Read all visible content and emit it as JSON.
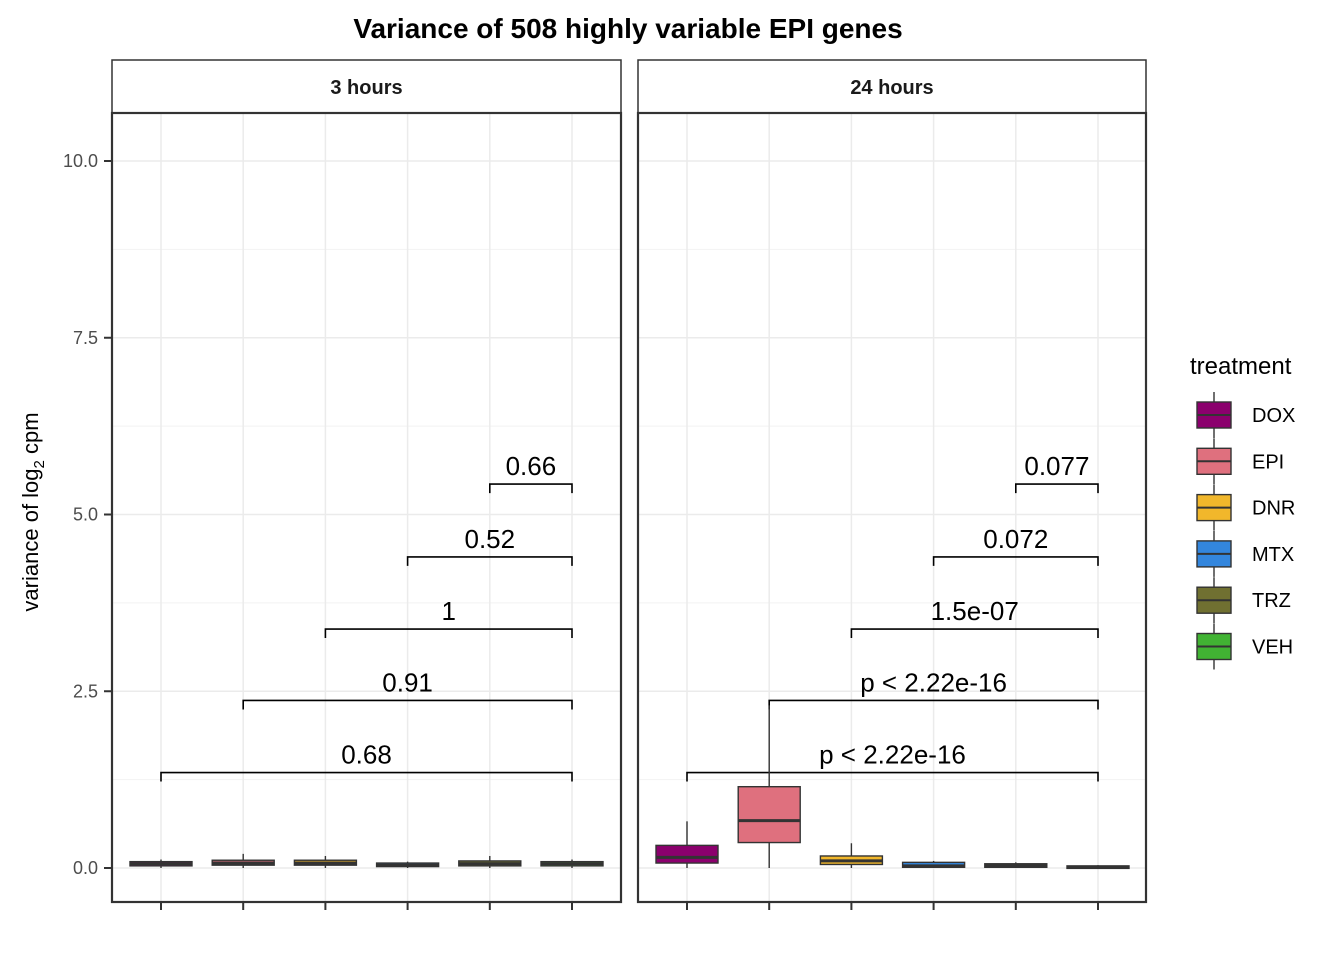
{
  "chart_data": {
    "type": "box",
    "title": "Variance of 508 highly variable EPI genes",
    "ylabel": {
      "prefix": "variance of log",
      "subscript": "2",
      "suffix": " cpm"
    },
    "ylim": [
      -0.45,
      10.7
    ],
    "yticks": [
      0,
      2.5,
      5,
      7.5,
      10
    ],
    "ytick_labels": [
      "0.0",
      "2.5",
      "5.0",
      "7.5",
      "10.0"
    ],
    "grid": true,
    "legend": {
      "title": "treatment",
      "position": "right",
      "items": [
        {
          "label": "DOX",
          "color": "#8B006D"
        },
        {
          "label": "EPI",
          "color": "#DF707E"
        },
        {
          "label": "DNR",
          "color": "#F1B72B"
        },
        {
          "label": "MTX",
          "color": "#3386DD"
        },
        {
          "label": "TRZ",
          "color": "#707031"
        },
        {
          "label": "VEH",
          "color": "#41B333"
        }
      ]
    },
    "panels": [
      {
        "label": "3 hours",
        "boxes": [
          {
            "treatment": "DOX",
            "low": 0.0,
            "q1": 0.03,
            "median": 0.06,
            "q3": 0.09,
            "high": 0.12
          },
          {
            "treatment": "EPI",
            "low": 0.0,
            "q1": 0.04,
            "median": 0.07,
            "q3": 0.11,
            "high": 0.2
          },
          {
            "treatment": "DNR",
            "low": 0.0,
            "q1": 0.04,
            "median": 0.07,
            "q3": 0.11,
            "high": 0.17
          },
          {
            "treatment": "MTX",
            "low": 0.0,
            "q1": 0.02,
            "median": 0.04,
            "q3": 0.07,
            "high": 0.09
          },
          {
            "treatment": "TRZ",
            "low": 0.0,
            "q1": 0.03,
            "median": 0.06,
            "q3": 0.1,
            "high": 0.17
          },
          {
            "treatment": "VEH",
            "low": 0.0,
            "q1": 0.03,
            "median": 0.06,
            "q3": 0.09,
            "high": 0.12
          }
        ],
        "comparisons": [
          {
            "from": "DOX",
            "to": "VEH",
            "y": 1.35,
            "label": "0.68"
          },
          {
            "from": "EPI",
            "to": "VEH",
            "y": 2.37,
            "label": "0.91"
          },
          {
            "from": "DNR",
            "to": "VEH",
            "y": 3.38,
            "label": "1"
          },
          {
            "from": "MTX",
            "to": "VEH",
            "y": 4.4,
            "label": "0.52"
          },
          {
            "from": "TRZ",
            "to": "VEH",
            "y": 5.43,
            "label": "0.66"
          }
        ]
      },
      {
        "label": "24 hours",
        "boxes": [
          {
            "treatment": "DOX",
            "low": 0.0,
            "q1": 0.07,
            "median": 0.15,
            "q3": 0.32,
            "high": 0.66
          },
          {
            "treatment": "EPI",
            "low": 0.0,
            "q1": 0.36,
            "median": 0.67,
            "q3": 1.15,
            "high": 2.3
          },
          {
            "treatment": "DNR",
            "low": 0.0,
            "q1": 0.05,
            "median": 0.1,
            "q3": 0.17,
            "high": 0.35
          },
          {
            "treatment": "MTX",
            "low": 0.0,
            "q1": 0.01,
            "median": 0.03,
            "q3": 0.08,
            "high": 0.1
          },
          {
            "treatment": "TRZ",
            "low": 0.0,
            "q1": 0.01,
            "median": 0.03,
            "q3": 0.06,
            "high": 0.08
          },
          {
            "treatment": "VEH",
            "low": 0.0,
            "q1": 0.0,
            "median": 0.01,
            "q3": 0.03,
            "high": 0.04
          }
        ],
        "comparisons": [
          {
            "from": "DOX",
            "to": "VEH",
            "y": 1.35,
            "label": "p < 2.22e-16"
          },
          {
            "from": "EPI",
            "to": "VEH",
            "y": 2.37,
            "label": "p < 2.22e-16"
          },
          {
            "from": "DNR",
            "to": "VEH",
            "y": 3.38,
            "label": "1.5e-07"
          },
          {
            "from": "MTX",
            "to": "VEH",
            "y": 4.4,
            "label": "0.072"
          },
          {
            "from": "TRZ",
            "to": "VEH",
            "y": 5.43,
            "label": "0.077"
          }
        ]
      }
    ]
  }
}
